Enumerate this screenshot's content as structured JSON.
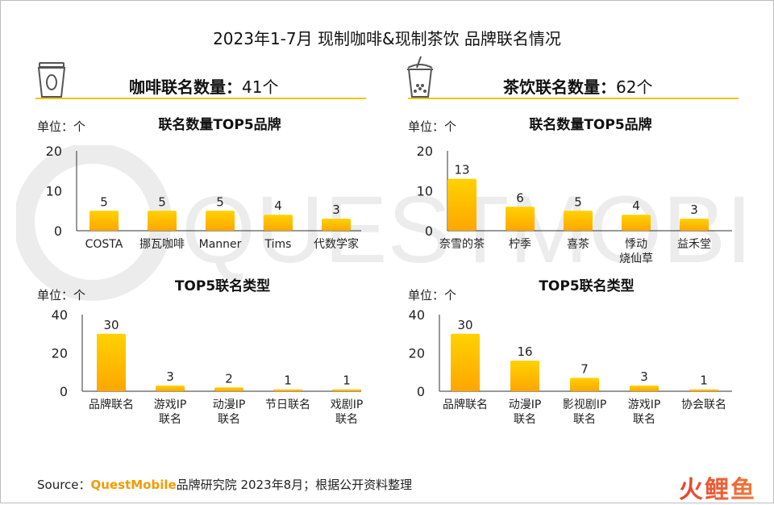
{
  "title": "2023年1-7月 现制咖啡&现制茶饮 品牌联名情况",
  "colors": {
    "bar_top": "#ffd200",
    "bar_bottom": "#ffa600",
    "rule": "#f2c500",
    "axis": "#333333",
    "brand": "#f29b00"
  },
  "panels": {
    "coffee": {
      "icon": "coffee-cup-icon",
      "heading": "咖啡联名数量：",
      "count": "41个",
      "top5_brands": {
        "title": "联名数量TOP5品牌",
        "unit": "单位：个"
      },
      "top5_types": {
        "title": "TOP5联名类型",
        "unit": "单位：个"
      }
    },
    "tea": {
      "icon": "bubble-tea-icon",
      "heading": "茶饮联名数量：",
      "count": "62个",
      "top5_brands": {
        "title": "联名数量TOP5品牌",
        "unit": "单位：个"
      },
      "top5_types": {
        "title": "TOP5联名类型",
        "unit": "单位：个"
      }
    }
  },
  "chart_data": [
    {
      "id": "coffee-brands",
      "type": "bar",
      "title": "联名数量TOP5品牌",
      "ylim": [
        0,
        20
      ],
      "yticks": [
        0,
        10,
        20
      ],
      "categories": [
        [
          "COSTA"
        ],
        [
          "挪瓦咖啡"
        ],
        [
          "Manner"
        ],
        [
          "Tims"
        ],
        [
          "代数学家"
        ]
      ],
      "values": [
        5,
        5,
        5,
        4,
        3
      ]
    },
    {
      "id": "tea-brands",
      "type": "bar",
      "title": "联名数量TOP5品牌",
      "ylim": [
        0,
        20
      ],
      "yticks": [
        0,
        10,
        20
      ],
      "categories": [
        [
          "奈雪的茶"
        ],
        [
          "柠季"
        ],
        [
          "喜茶"
        ],
        [
          "悸动",
          "烧仙草"
        ],
        [
          "益禾堂"
        ]
      ],
      "values": [
        13,
        6,
        5,
        4,
        3
      ]
    },
    {
      "id": "coffee-types",
      "type": "bar",
      "title": "TOP5联名类型",
      "ylim": [
        0,
        40
      ],
      "yticks": [
        0,
        20,
        40
      ],
      "categories": [
        [
          "品牌联名"
        ],
        [
          "游戏IP",
          "联名"
        ],
        [
          "动漫IP",
          "联名"
        ],
        [
          "节日联名"
        ],
        [
          "戏剧IP",
          "联名"
        ]
      ],
      "values": [
        30,
        3,
        2,
        1,
        1
      ]
    },
    {
      "id": "tea-types",
      "type": "bar",
      "title": "TOP5联名类型",
      "ylim": [
        0,
        40
      ],
      "yticks": [
        0,
        20,
        40
      ],
      "categories": [
        [
          "品牌联名"
        ],
        [
          "动漫IP",
          "联名"
        ],
        [
          "影视剧IP",
          "联名"
        ],
        [
          "游戏IP",
          "联名"
        ],
        [
          "协会联名"
        ]
      ],
      "values": [
        30,
        16,
        7,
        3,
        1
      ]
    }
  ],
  "source": {
    "prefix": "Source：",
    "brand": "QuestMobile",
    "text": "品牌研究院 2023年8月；根据公开资料整理"
  },
  "watermark": "QUESTMOBILE",
  "corner_logo": "火鲤鱼"
}
